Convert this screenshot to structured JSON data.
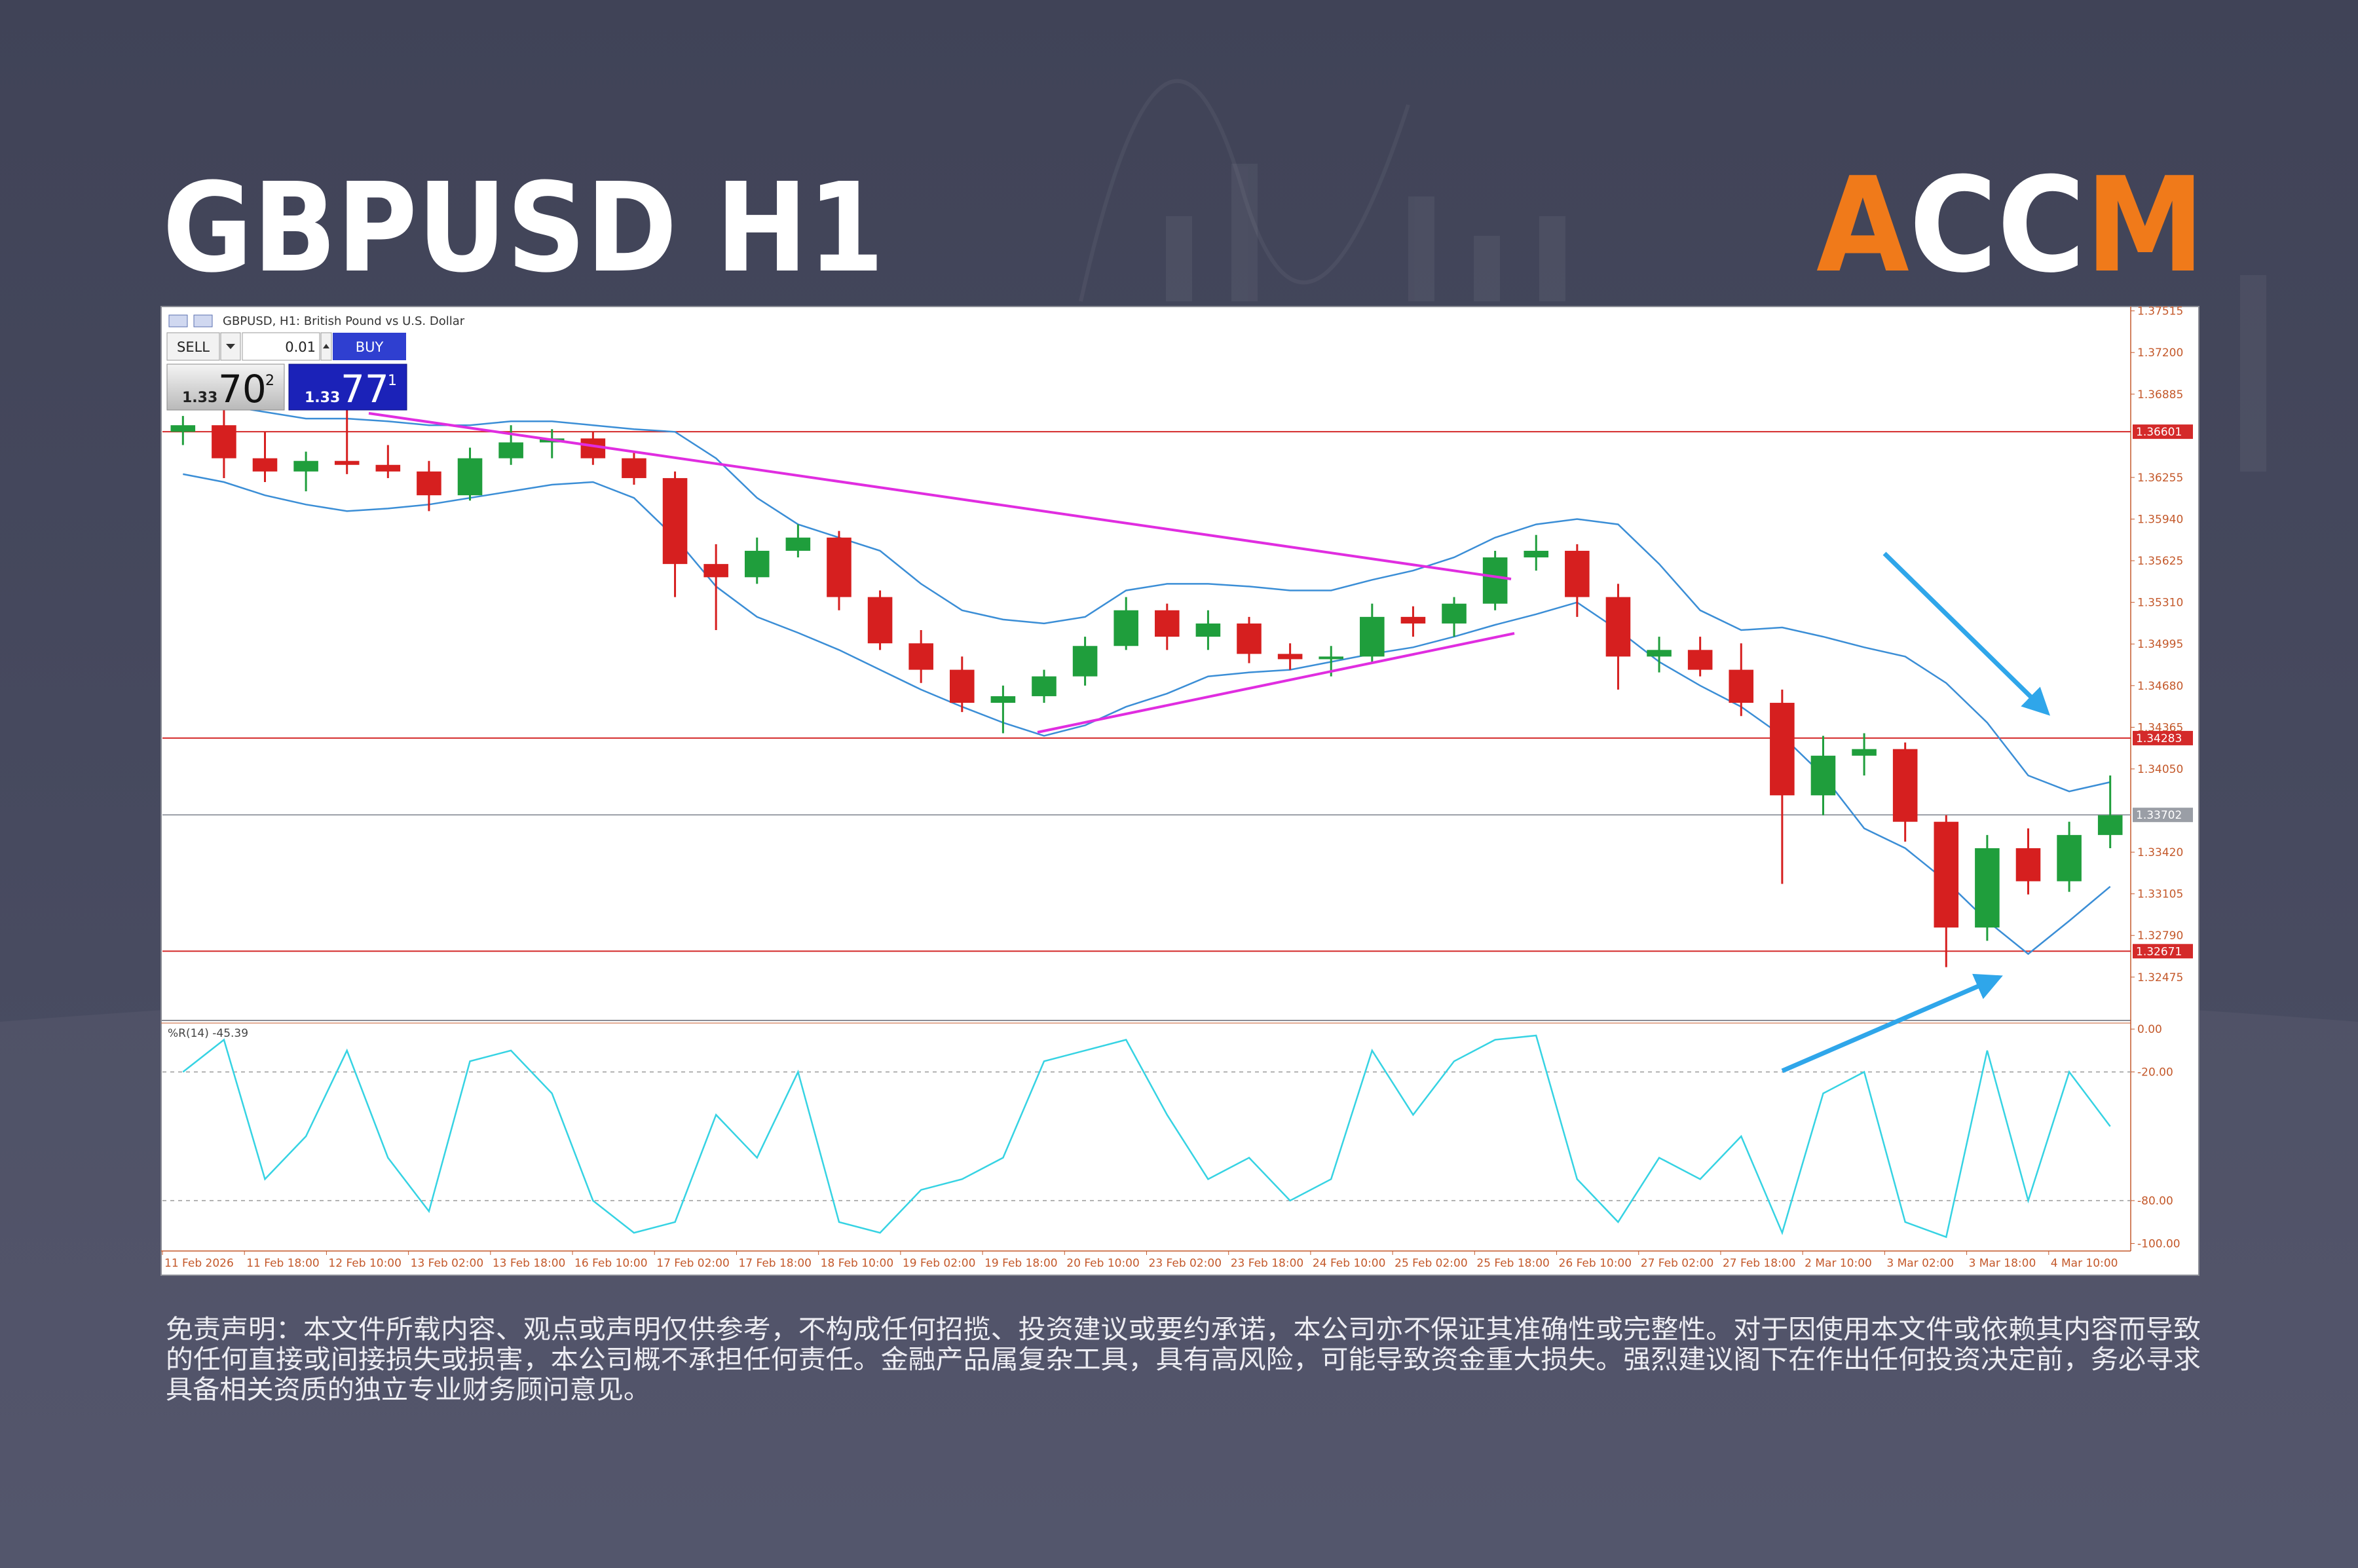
{
  "chart_data": {
    "type": "candlestick",
    "title": "GBPUSD H1",
    "subtitle": "GBPUSD, H1: British Pound vs U.S. Dollar",
    "categories": [
      "11 Feb 2026",
      null,
      "11 Feb 18:00",
      null,
      "12 Feb 10:00",
      null,
      "13 Feb 02:00",
      null,
      "13 Feb 18:00",
      null,
      "16 Feb 10:00",
      null,
      "17 Feb 02:00",
      null,
      "17 Feb 18:00",
      null,
      "18 Feb 10:00",
      null,
      "19 Feb 02:00",
      null,
      "19 Feb 18:00",
      null,
      "20 Feb 10:00",
      null,
      "23 Feb 02:00",
      null,
      "23 Feb 18:00",
      null,
      "24 Feb 10:00",
      null,
      "25 Feb 02:00",
      null,
      "25 Feb 18:00",
      null,
      "26 Feb 10:00",
      null,
      "27 Feb 02:00",
      null,
      "27 Feb 18:00",
      null,
      "2 Mar 10:00",
      null,
      "3 Mar 02:00",
      null,
      "3 Mar 18:00",
      null,
      "4 Mar 10:00",
      null
    ],
    "open": [
      1.366,
      1.3665,
      1.364,
      1.363,
      1.3638,
      1.3635,
      1.363,
      1.3612,
      1.364,
      1.3652,
      1.3655,
      1.364,
      1.3625,
      1.356,
      1.355,
      1.357,
      1.358,
      1.3535,
      1.35,
      1.348,
      1.3455,
      1.346,
      1.3475,
      1.3498,
      1.3525,
      1.3505,
      1.3515,
      1.3492,
      1.3488,
      1.349,
      1.352,
      1.3515,
      1.353,
      1.3565,
      1.357,
      1.3535,
      1.349,
      1.3495,
      1.348,
      1.3455,
      1.3385,
      1.3415,
      1.342,
      1.3365,
      1.3285,
      1.3345,
      1.332,
      1.3355
    ],
    "high": [
      1.3672,
      1.3683,
      1.366,
      1.3645,
      1.368,
      1.365,
      1.3638,
      1.3648,
      1.3665,
      1.3662,
      1.366,
      1.3645,
      1.363,
      1.3575,
      1.358,
      1.359,
      1.3585,
      1.354,
      1.351,
      1.349,
      1.3468,
      1.348,
      1.3505,
      1.3535,
      1.353,
      1.3525,
      1.352,
      1.35,
      1.3498,
      1.353,
      1.3528,
      1.3535,
      1.357,
      1.3582,
      1.3575,
      1.3545,
      1.3505,
      1.3505,
      1.35,
      1.3465,
      1.343,
      1.3432,
      1.3425,
      1.337,
      1.3355,
      1.336,
      1.3365,
      1.34
    ],
    "low": [
      1.365,
      1.3625,
      1.3622,
      1.3615,
      1.3628,
      1.3625,
      1.36,
      1.3608,
      1.3635,
      1.364,
      1.3635,
      1.362,
      1.3535,
      1.351,
      1.3545,
      1.3565,
      1.3525,
      1.3495,
      1.347,
      1.3448,
      1.3432,
      1.3455,
      1.3468,
      1.3495,
      1.3495,
      1.3495,
      1.3485,
      1.348,
      1.3475,
      1.3485,
      1.3505,
      1.3505,
      1.3525,
      1.3555,
      1.352,
      1.3465,
      1.3478,
      1.3475,
      1.3445,
      1.3318,
      1.337,
      1.34,
      1.335,
      1.3255,
      1.3275,
      1.331,
      1.3312,
      1.3345
    ],
    "close": [
      1.3665,
      1.364,
      1.363,
      1.3638,
      1.3635,
      1.363,
      1.3612,
      1.364,
      1.3652,
      1.3655,
      1.364,
      1.3625,
      1.356,
      1.355,
      1.357,
      1.358,
      1.3535,
      1.35,
      1.348,
      1.3455,
      1.346,
      1.3475,
      1.3498,
      1.3525,
      1.3505,
      1.3515,
      1.3492,
      1.3488,
      1.349,
      1.352,
      1.3515,
      1.353,
      1.3565,
      1.357,
      1.3535,
      1.349,
      1.3495,
      1.348,
      1.3455,
      1.3385,
      1.3415,
      1.342,
      1.3365,
      1.3285,
      1.3345,
      1.332,
      1.3355,
      1.337
    ],
    "up_color": "#1f9e3c",
    "down_color": "#d61f1f",
    "bands": {
      "color": "#3b8ed6",
      "upper": [
        1.3684,
        1.368,
        1.3675,
        1.367,
        1.367,
        1.3668,
        1.3665,
        1.3665,
        1.3668,
        1.3668,
        1.3665,
        1.3662,
        1.366,
        1.364,
        1.361,
        1.359,
        1.358,
        1.357,
        1.3545,
        1.3525,
        1.3518,
        1.3515,
        1.352,
        1.354,
        1.3545,
        1.3545,
        1.3543,
        1.354,
        1.354,
        1.3548,
        1.3555,
        1.3565,
        1.358,
        1.359,
        1.3594,
        1.359,
        1.356,
        1.3525,
        1.351,
        1.3512,
        1.3505,
        1.3497,
        1.349,
        1.347,
        1.344,
        1.34,
        1.3388,
        1.3395
      ],
      "lower": [
        1.3628,
        1.3622,
        1.3612,
        1.3605,
        1.36,
        1.3602,
        1.3605,
        1.361,
        1.3615,
        1.362,
        1.3622,
        1.361,
        1.358,
        1.3543,
        1.352,
        1.3508,
        1.3495,
        1.348,
        1.3465,
        1.3452,
        1.344,
        1.343,
        1.3438,
        1.3452,
        1.3462,
        1.3475,
        1.3478,
        1.348,
        1.3486,
        1.3492,
        1.3497,
        1.3505,
        1.3514,
        1.3522,
        1.3531,
        1.351,
        1.3486,
        1.3468,
        1.3452,
        1.343,
        1.34,
        1.336,
        1.3345,
        1.332,
        1.329,
        1.3265,
        1.329,
        1.3316
      ]
    },
    "ylim": [
      1.32157,
      1.37538
    ],
    "yticks": [
      1.37515,
      {
        "value": 1.372,
        "label": "1.37200"
      },
      1.36885,
      1.36255,
      {
        "value": 1.3594,
        "label": "1.35940"
      },
      1.35625,
      {
        "value": 1.3531,
        "label": "1.35310"
      },
      1.34995,
      {
        "value": 1.3468,
        "label": "1.34680"
      },
      1.34365,
      {
        "value": 1.3405,
        "label": "1.34050"
      },
      {
        "value": 1.3342,
        "label": "1.33420"
      },
      1.33105,
      {
        "value": 1.3279,
        "label": "1.32790"
      },
      1.32475
    ],
    "hlines": [
      {
        "value": 1.36601,
        "color": "#d42a2a"
      },
      {
        "value": 1.34283,
        "color": "#d42a2a"
      },
      {
        "value": 1.32671,
        "color": "#d42a2a"
      },
      {
        "value": 1.33702,
        "color": "#9a9ea6"
      }
    ],
    "indicator": {
      "type": "line",
      "label": "%R(14) -45.39",
      "color": "#36d3e3",
      "values": [
        -20,
        -5,
        -70,
        -50,
        -10,
        -60,
        -85,
        -15,
        -10,
        -30,
        -80,
        -95,
        -90,
        -40,
        -60,
        -20,
        -90,
        -95,
        -75,
        -70,
        -60,
        -15,
        -10,
        -5,
        -40,
        -70,
        -60,
        -80,
        -70,
        -10,
        -40,
        -15,
        -5,
        -3,
        -70,
        -90,
        -60,
        -70,
        -50,
        -95,
        -30,
        -20,
        -90,
        -97,
        -10,
        -80,
        -20,
        -45.39
      ],
      "ylim": [
        -103.5,
        2.8
      ],
      "yticks": [
        {
          "value": 0,
          "label": "0.00"
        },
        {
          "value": -20,
          "label": "-20.00"
        },
        {
          "value": -80,
          "label": "-80.00"
        },
        {
          "value": -100,
          "label": "-100.00"
        }
      ],
      "dashed_levels": [
        -20,
        -80
      ]
    }
  },
  "logo": {
    "left": "A",
    "middle": "CC",
    "right": "M"
  },
  "trade_panel": {
    "sell": "SELL",
    "lot": "0.01",
    "buy": "BUY",
    "bid": {
      "big": "1.33",
      "pips": "70",
      "point": "2"
    },
    "ask": {
      "big": "1.33",
      "pips": "77",
      "point": "1"
    }
  },
  "disclaimer": [
    "免责声明：本文件所载内容、观点或声明仅供参考，不构成任何招揽、投资建议或要约承诺，本公司亦不保证其准确性或完整性。对于因使用本文件或依赖其内容而导致",
    "的任何直接或间接损失或损害，本公司概不承担任何责任。金融产品属复杂工具，具有高风险，可能导致资金重大损失。强烈建议阁下在作出任何投资决定前，务必寻求",
    "具备相关资质的独立专业财务顾问意见。"
  ]
}
